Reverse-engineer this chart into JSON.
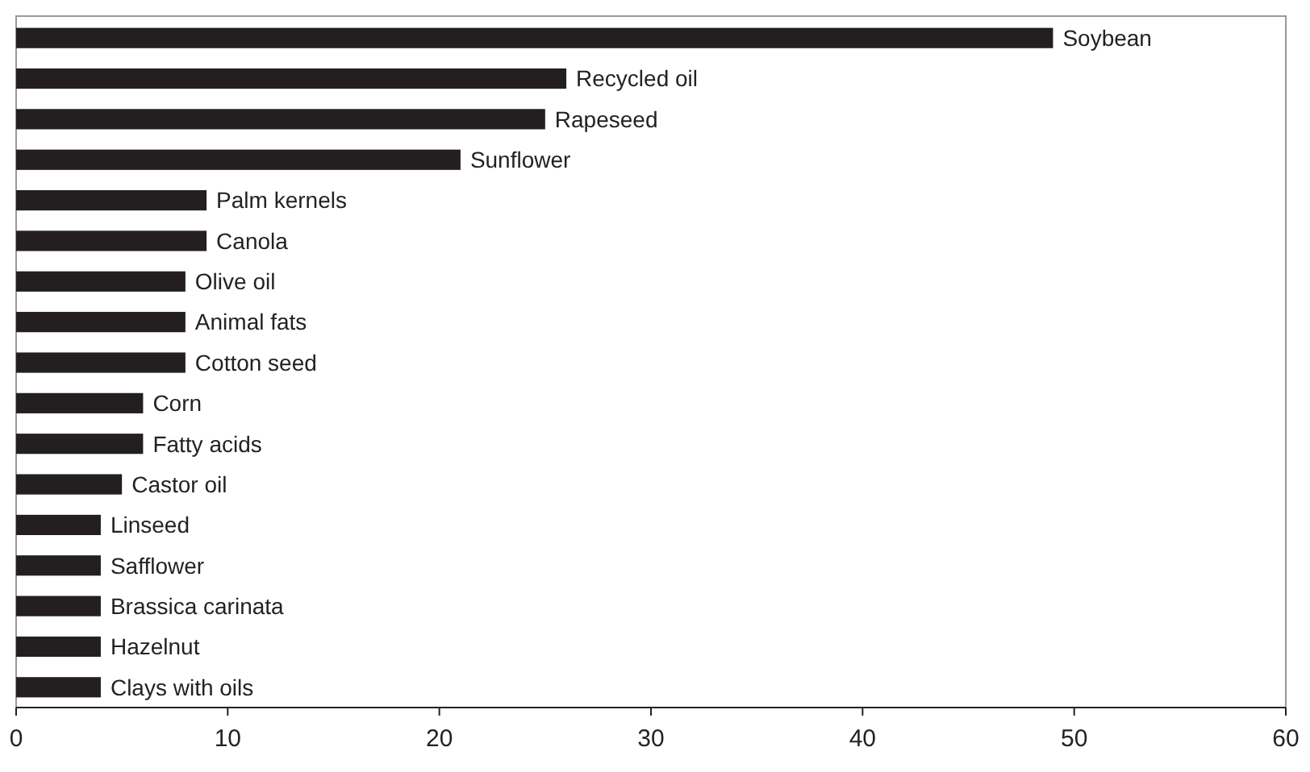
{
  "chart_data": {
    "type": "bar",
    "orientation": "horizontal",
    "categories": [
      "Soybean",
      "Recycled oil",
      "Rapeseed",
      "Sunflower",
      "Palm kernels",
      "Canola",
      "Olive oil",
      "Animal fats",
      "Cotton seed",
      "Corn",
      "Fatty acids",
      "Castor oil",
      "Linseed",
      "Safflower",
      "Brassica carinata",
      "Hazelnut",
      "Clays with oils"
    ],
    "values": [
      49,
      26,
      25,
      21,
      9,
      9,
      8,
      8,
      8,
      6,
      6,
      5,
      4,
      4,
      4,
      4,
      4
    ],
    "color": "#231f20",
    "xlim": [
      0,
      60
    ],
    "xticks": [
      0,
      10,
      20,
      30,
      40,
      50,
      60
    ],
    "grid": false
  }
}
